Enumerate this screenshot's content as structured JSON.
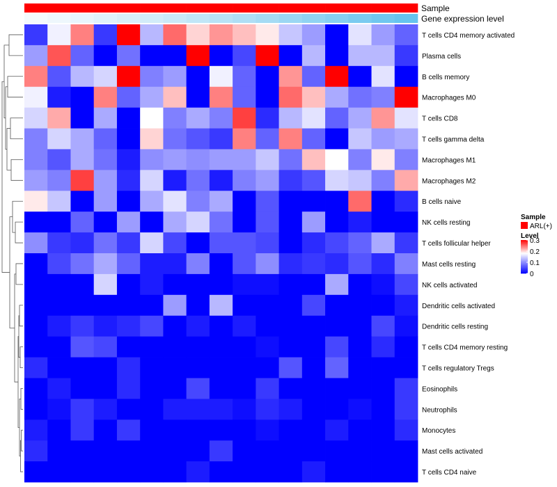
{
  "chart_data": {
    "type": "heatmap",
    "title": "",
    "rows": [
      "T cells CD4 memory activated",
      "Plasma cells",
      "B cells memory",
      "Macrophages M0",
      "T cells CD8",
      "T cells gamma delta",
      "Macrophages M1",
      "Macrophages M2",
      "B cells naive",
      "NK cells resting",
      "T cells follicular helper",
      "Mast cells resting",
      "NK cells activated",
      "Dendritic cells activated",
      "Dendritic cells resting",
      "T cells CD4 memory resting",
      "T cells regulatory  Tregs",
      "Eosinophils",
      "Neutrophils",
      "Monocytes",
      "Mast cells activated",
      "T cells CD4 naive"
    ],
    "columns": 17,
    "values": [
      [
        0.04,
        0.17,
        0.24,
        0.04,
        0.3,
        0.13,
        0.25,
        0.2,
        0.23,
        0.21,
        0.19,
        0.14,
        0.11,
        0.0,
        0.16,
        0.11,
        0.07
      ],
      [
        0.11,
        0.26,
        0.07,
        0.0,
        0.08,
        0.0,
        0.0,
        0.3,
        0.0,
        0.05,
        0.3,
        0.0,
        0.13,
        0.0,
        0.13,
        0.13,
        0.04
      ],
      [
        0.24,
        0.06,
        0.13,
        0.15,
        0.3,
        0.09,
        0.11,
        0.0,
        0.17,
        0.07,
        0.0,
        0.23,
        0.07,
        0.3,
        0.0,
        0.16,
        0.0
      ],
      [
        0.17,
        0.02,
        0.0,
        0.24,
        0.07,
        0.12,
        0.21,
        0.0,
        0.24,
        0.07,
        0.0,
        0.25,
        0.21,
        0.12,
        0.08,
        0.09,
        0.3
      ],
      [
        0.15,
        0.22,
        0.0,
        0.12,
        0.0,
        0.18,
        0.09,
        0.12,
        0.09,
        0.27,
        0.03,
        0.13,
        0.16,
        0.07,
        0.12,
        0.23,
        0.16
      ],
      [
        0.09,
        0.15,
        0.12,
        0.07,
        0.0,
        0.2,
        0.08,
        0.06,
        0.04,
        0.24,
        0.07,
        0.24,
        0.07,
        0.0,
        0.14,
        0.11,
        0.12
      ],
      [
        0.09,
        0.06,
        0.12,
        0.08,
        0.02,
        0.1,
        0.11,
        0.1,
        0.11,
        0.11,
        0.14,
        0.08,
        0.21,
        0.18,
        0.09,
        0.19,
        0.09
      ],
      [
        0.11,
        0.09,
        0.27,
        0.11,
        0.03,
        0.15,
        0.02,
        0.08,
        0.02,
        0.09,
        0.11,
        0.04,
        0.06,
        0.15,
        0.14,
        0.09,
        0.22
      ],
      [
        0.19,
        0.14,
        0.0,
        0.11,
        0.0,
        0.12,
        0.16,
        0.09,
        0.12,
        0.0,
        0.06,
        0.0,
        0.0,
        0.0,
        0.25,
        0.0,
        0.03
      ],
      [
        0.0,
        0.0,
        0.07,
        0.0,
        0.11,
        0.0,
        0.12,
        0.15,
        0.08,
        0.0,
        0.06,
        0.0,
        0.11,
        0.0,
        0.02,
        0.0,
        0.0
      ],
      [
        0.1,
        0.04,
        0.03,
        0.08,
        0.04,
        0.15,
        0.05,
        0.0,
        0.06,
        0.06,
        0.05,
        0.0,
        0.03,
        0.05,
        0.07,
        0.12,
        0.04
      ],
      [
        0.0,
        0.05,
        0.08,
        0.12,
        0.07,
        0.02,
        0.02,
        0.09,
        0.0,
        0.06,
        0.1,
        0.03,
        0.04,
        0.03,
        0.06,
        0.03,
        0.09
      ],
      [
        0.0,
        0.0,
        0.0,
        0.15,
        0.0,
        0.02,
        0.0,
        0.0,
        0.0,
        0.01,
        0.01,
        0.0,
        0.0,
        0.12,
        0.0,
        0.01,
        0.05
      ],
      [
        0.0,
        0.0,
        0.0,
        0.0,
        0.0,
        0.0,
        0.11,
        0.0,
        0.13,
        0.0,
        0.0,
        0.0,
        0.05,
        0.0,
        0.0,
        0.0,
        0.02
      ],
      [
        0.0,
        0.02,
        0.04,
        0.02,
        0.03,
        0.05,
        0.0,
        0.02,
        0.0,
        0.02,
        0.0,
        0.0,
        0.0,
        0.0,
        0.0,
        0.05,
        0.01
      ],
      [
        0.0,
        0.0,
        0.06,
        0.05,
        0.0,
        0.0,
        0.0,
        0.0,
        0.0,
        0.0,
        0.01,
        0.0,
        0.0,
        0.05,
        0.0,
        0.03,
        0.0
      ],
      [
        0.03,
        0.0,
        0.0,
        0.0,
        0.03,
        0.0,
        0.0,
        0.0,
        0.0,
        0.0,
        0.0,
        0.06,
        0.0,
        0.07,
        0.0,
        0.0,
        0.0
      ],
      [
        0.0,
        0.02,
        0.0,
        0.0,
        0.03,
        0.0,
        0.0,
        0.05,
        0.0,
        0.0,
        0.04,
        0.0,
        0.0,
        0.0,
        0.0,
        0.0,
        0.04
      ],
      [
        0.0,
        0.01,
        0.04,
        0.02,
        0.0,
        0.0,
        0.02,
        0.02,
        0.02,
        0.01,
        0.03,
        0.02,
        0.0,
        0.0,
        0.01,
        0.0,
        0.04
      ],
      [
        0.02,
        0.0,
        0.04,
        0.0,
        0.04,
        0.0,
        0.0,
        0.0,
        0.0,
        0.0,
        0.01,
        0.0,
        0.0,
        0.02,
        0.0,
        0.0,
        0.03
      ],
      [
        0.03,
        0.0,
        0.0,
        0.0,
        0.0,
        0.0,
        0.0,
        0.0,
        0.04,
        0.0,
        0.0,
        0.0,
        0.0,
        0.0,
        0.0,
        0.0,
        0.0
      ],
      [
        0.0,
        0.0,
        0.0,
        0.0,
        0.0,
        0.0,
        0.0,
        0.02,
        0.0,
        0.0,
        0.0,
        0.0,
        0.02,
        0.0,
        0.0,
        0.0,
        0.0
      ]
    ],
    "annotations": [
      {
        "name": "Sample",
        "colors": [
          "#ff0000",
          "#ff0000",
          "#ff0000",
          "#ff0000",
          "#ff0000",
          "#ff0000",
          "#ff0000",
          "#ff0000",
          "#ff0000",
          "#ff0000",
          "#ff0000",
          "#ff0000",
          "#ff0000",
          "#ff0000",
          "#ff0000",
          "#ff0000",
          "#ff0000"
        ]
      },
      {
        "name": "Gene expression level",
        "colors": [
          "#f4fafd",
          "#eef7fc",
          "#e8f5fc",
          "#e0f2fb",
          "#d9eff9",
          "#d2ecf9",
          "#cae9f8",
          "#c1e6f7",
          "#b8e2f6",
          "#afdef5",
          "#a5dbf4",
          "#9bd7f3",
          "#90d3f2",
          "#86cff1",
          "#7bcbf0",
          "#70c7ef",
          "#66c4ee"
        ]
      }
    ],
    "legend_sample": {
      "title": "Sample",
      "label": "ARL(+)",
      "color": "#ff0000"
    },
    "legend_level": {
      "title": "Level",
      "ticks": [
        0.3,
        0.2,
        0.1,
        0
      ],
      "tick_labels": [
        "0.3",
        "0.2",
        "0.1",
        "0"
      ],
      "min": 0,
      "max": 0.3
    },
    "color_scale": {
      "low": "#0000ff",
      "mid": "#ffffff",
      "high": "#ff0000",
      "midpoint": 0.18
    }
  }
}
